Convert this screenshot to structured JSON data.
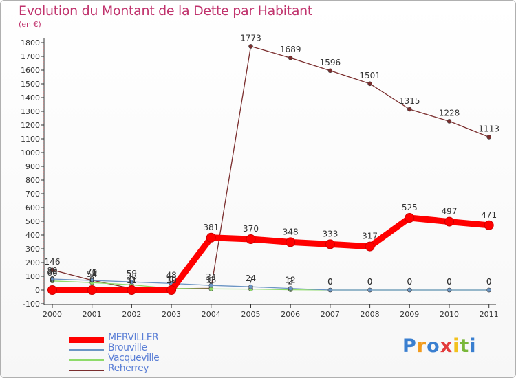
{
  "chart_data": {
    "type": "line",
    "title": "Evolution du Montant de la Dette par Habitant",
    "ylabel": "(en €)",
    "xlabel": "",
    "categories": [
      "2000",
      "2001",
      "2002",
      "2003",
      "2004",
      "2005",
      "2006",
      "2007",
      "2008",
      "2009",
      "2010",
      "2011"
    ],
    "ylim": [
      -100,
      1800
    ],
    "yticks": [
      -100,
      0,
      100,
      200,
      300,
      400,
      500,
      600,
      700,
      800,
      900,
      1000,
      1100,
      1200,
      1300,
      1400,
      1500,
      1600,
      1700,
      1800
    ],
    "grid": false,
    "legend_position": "bottom-left",
    "series": [
      {
        "name": "MERVILLER",
        "color": "#ff0000",
        "values": [
          0,
          0,
          0,
          0,
          381,
          370,
          348,
          333,
          317,
          525,
          497,
          471
        ],
        "labels": [
          "0",
          "0",
          "0",
          "0",
          "381",
          "370",
          "348",
          "333",
          "317",
          "525",
          "497",
          "471"
        ],
        "thick": true
      },
      {
        "name": "Brouville",
        "color": "#6b95c4",
        "values": [
          80,
          70,
          59,
          48,
          34,
          24,
          12,
          0,
          0,
          0,
          0,
          0
        ],
        "labels": [
          "80",
          "70",
          "59",
          "48",
          "34",
          "24",
          "12",
          "0",
          "0",
          "0",
          "0",
          "0"
        ]
      },
      {
        "name": "Vacqueville",
        "color": "#8edb6a",
        "values": [
          66,
          54,
          38,
          12,
          8,
          7,
          2,
          0,
          0,
          0,
          0,
          0
        ],
        "labels": [
          "66",
          "54",
          "38",
          "12",
          "8",
          "7",
          "2",
          "0",
          "0",
          "0",
          "0",
          "0"
        ]
      },
      {
        "name": "Reherrey",
        "color": "#7a2d2d",
        "values": [
          146,
          71,
          11,
          10,
          13,
          1773,
          1689,
          1596,
          1501,
          1315,
          1228,
          1113
        ],
        "labels": [
          "146",
          "71",
          "11",
          "10",
          "13",
          "1773",
          "1689",
          "1596",
          "1501",
          "1315",
          "1228",
          "1113"
        ]
      }
    ]
  },
  "logo": {
    "text": "Proxiti",
    "letters": [
      {
        "ch": "P",
        "color": "#3a7fd0"
      },
      {
        "ch": "r",
        "color": "#f29b1d"
      },
      {
        "ch": "o",
        "color": "#3a7fd0"
      },
      {
        "ch": "x",
        "color": "#e33b3b"
      },
      {
        "ch": "i",
        "color": "#f2c11d"
      },
      {
        "ch": "t",
        "color": "#7ab83a"
      },
      {
        "ch": "i",
        "color": "#3a7fd0"
      }
    ]
  }
}
